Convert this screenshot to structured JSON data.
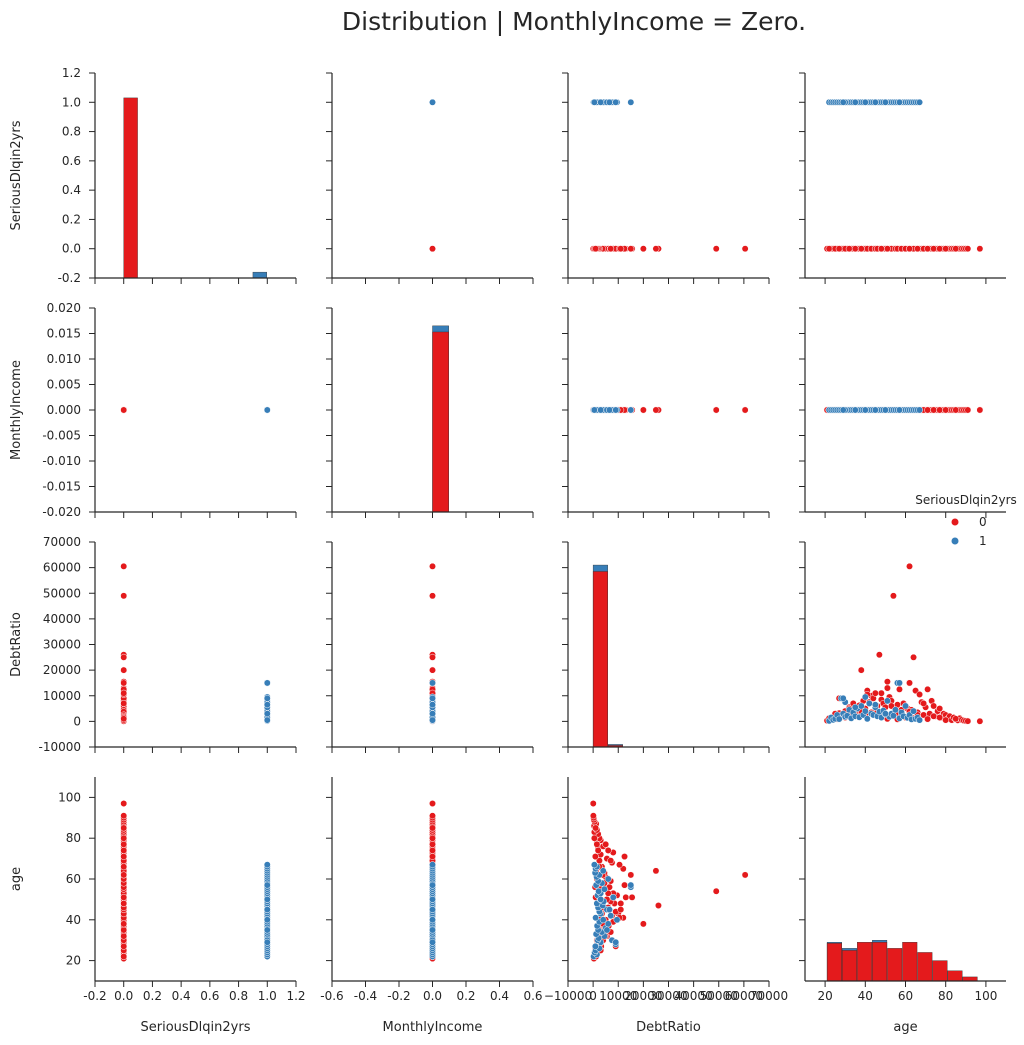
{
  "chart_data": {
    "type": "scatter",
    "title": "Distribution | MonthlyIncome = Zero.",
    "variables": [
      "SeriousDlqin2yrs",
      "MonthlyIncome",
      "DebtRatio",
      "age"
    ],
    "legend": {
      "title": "SeriousDlqin2yrs",
      "placement": "right, between row 2 and row 3",
      "entries": [
        {
          "label": "0",
          "color": "#e41a1c"
        },
        {
          "label": "1",
          "color": "#377eb8"
        }
      ]
    },
    "axes": {
      "SeriousDlqin2yrs": {
        "range": [
          -0.2,
          1.2
        ],
        "ticks": [
          "-0.2",
          "0.0",
          "0.2",
          "0.4",
          "0.6",
          "0.8",
          "1.0",
          "1.2"
        ],
        "tick_values": [
          -0.2,
          0,
          0.2,
          0.4,
          0.6,
          0.8,
          1.0,
          1.2
        ]
      },
      "MonthlyIncome_x": {
        "range": [
          -0.6,
          0.6
        ],
        "ticks": [
          "-0.6",
          "-0.4",
          "-0.2",
          "0.0",
          "0.2",
          "0.4",
          "0.6"
        ],
        "tick_values": [
          -0.6,
          -0.4,
          -0.2,
          0,
          0.2,
          0.4,
          0.6
        ]
      },
      "MonthlyIncome_y": {
        "range": [
          -0.02,
          0.02
        ],
        "ticks": [
          "-0.020",
          "-0.015",
          "-0.010",
          "-0.005",
          "0.000",
          "0.005",
          "0.010",
          "0.015",
          "0.020"
        ],
        "tick_values": [
          -0.02,
          -0.015,
          -0.01,
          -0.005,
          0,
          0.005,
          0.01,
          0.015,
          0.02
        ]
      },
      "DebtRatio_x": {
        "range": [
          -10000,
          70000
        ],
        "ticks": [
          "−10000",
          "0",
          "10000",
          "20000",
          "30000",
          "40000",
          "50000",
          "60000",
          "70000"
        ],
        "tick_values": [
          -10000,
          0,
          10000,
          20000,
          30000,
          40000,
          50000,
          60000,
          70000
        ]
      },
      "DebtRatio_y": {
        "range": [
          -10000,
          70000
        ],
        "ticks": [
          "-10000",
          "0",
          "10000",
          "20000",
          "30000",
          "40000",
          "50000",
          "60000",
          "70000"
        ],
        "tick_values": [
          -10000,
          0,
          10000,
          20000,
          30000,
          40000,
          50000,
          60000,
          70000
        ]
      },
      "age_x": {
        "range": [
          10,
          110
        ],
        "ticks": [
          "20",
          "40",
          "60",
          "80",
          "100"
        ],
        "tick_values": [
          20,
          40,
          60,
          80,
          100
        ]
      },
      "age_y": {
        "range": [
          10,
          110
        ],
        "ticks": [
          "20",
          "40",
          "60",
          "80",
          "100"
        ],
        "tick_values": [
          20,
          40,
          60,
          80,
          100
        ]
      }
    },
    "histograms": {
      "SeriousDlqin2yrs": {
        "range": [
          -0.2,
          1.2
        ],
        "ylim": [
          -0.2,
          1.2
        ],
        "bars": [
          {
            "x0": 0.0,
            "x1": 0.1,
            "series": 0,
            "top": 1.03
          },
          {
            "x0": 0.9,
            "x1": 1.0,
            "series": 1,
            "top": -0.16
          }
        ]
      },
      "MonthlyIncome": {
        "range": [
          -0.6,
          0.6
        ],
        "ylim": [
          -0.02,
          0.02
        ],
        "bars": [
          {
            "x0": 0.0,
            "x1": 0.1,
            "series": 1,
            "top": 0.0165
          },
          {
            "x0": 0.0,
            "x1": 0.1,
            "series": 0,
            "top": 0.0153
          }
        ]
      },
      "DebtRatio": {
        "range": [
          -10000,
          70000
        ],
        "ylim": [
          -10000,
          70000
        ],
        "bars": [
          {
            "x0": 0,
            "x1": 6000,
            "series": 1,
            "top": 61000
          },
          {
            "x0": 0,
            "x1": 6000,
            "series": 0,
            "top": 58500
          },
          {
            "x0": 6000,
            "x1": 12000,
            "series": 1,
            "top": -9000
          },
          {
            "x0": 6000,
            "x1": 12000,
            "series": 0,
            "top": -9400
          }
        ]
      },
      "age": {
        "range": [
          10,
          110
        ],
        "ylim": [
          0,
          200
        ],
        "bars": [
          {
            "x0": 21,
            "x1": 28.5,
            "series": 1,
            "top": 38
          },
          {
            "x0": 21,
            "x1": 28.5,
            "series": 0,
            "top": 37
          },
          {
            "x0": 28.5,
            "x1": 36,
            "series": 1,
            "top": 32
          },
          {
            "x0": 28.5,
            "x1": 36,
            "series": 0,
            "top": 30
          },
          {
            "x0": 36,
            "x1": 43.5,
            "series": 0,
            "top": 38
          },
          {
            "x0": 43.5,
            "x1": 51,
            "series": 1,
            "top": 40
          },
          {
            "x0": 43.5,
            "x1": 51,
            "series": 0,
            "top": 38
          },
          {
            "x0": 51,
            "x1": 58.5,
            "series": 0,
            "top": 32
          },
          {
            "x0": 58.5,
            "x1": 66,
            "series": 0,
            "top": 38
          },
          {
            "x0": 66,
            "x1": 73.5,
            "series": 0,
            "top": 28
          },
          {
            "x0": 73.5,
            "x1": 81,
            "series": 0,
            "top": 20
          },
          {
            "x0": 81,
            "x1": 88.5,
            "series": 0,
            "top": 10
          },
          {
            "x0": 88.5,
            "x1": 96,
            "series": 0,
            "top": 4
          }
        ]
      }
    },
    "series": [
      {
        "name": "0",
        "color": "#e41a1c",
        "age": [
          21,
          22,
          23,
          24,
          25,
          26,
          27,
          28,
          29,
          30,
          31,
          32,
          33,
          34,
          35,
          36,
          37,
          38,
          39,
          40,
          41,
          42,
          43,
          44,
          45,
          46,
          47,
          48,
          49,
          50,
          51,
          52,
          53,
          54,
          55,
          56,
          57,
          58,
          59,
          60,
          61,
          62,
          63,
          64,
          65,
          66,
          67,
          68,
          69,
          70,
          71,
          72,
          73,
          74,
          75,
          76,
          77,
          78,
          79,
          80,
          81,
          82,
          83,
          84,
          85,
          86,
          87,
          88,
          89,
          90,
          91,
          97,
          22,
          25,
          27,
          30,
          32,
          35,
          38,
          40,
          41,
          43,
          45,
          46,
          48,
          50,
          51,
          53,
          55,
          56,
          58,
          60,
          62,
          64,
          66,
          69,
          71,
          74,
          77,
          80,
          85,
          38,
          48,
          51,
          62
        ],
        "debt": [
          300,
          800,
          600,
          1500,
          2000,
          900,
          3200,
          2500,
          1800,
          4000,
          2200,
          5500,
          3000,
          7000,
          2800,
          4500,
          6200,
          3500,
          8000,
          5000,
          12000,
          7500,
          10000,
          9000,
          11000,
          6000,
          26000,
          8500,
          7000,
          5500,
          13000,
          9500,
          8000,
          49000,
          4000,
          6500,
          12500,
          3000,
          7000,
          6000,
          5000,
          60500,
          4500,
          25000,
          12000,
          3500,
          10500,
          7500,
          2500,
          5500,
          12500,
          3000,
          8000,
          6000,
          2000,
          4000,
          5000,
          1500,
          3000,
          2500,
          1000,
          2000,
          500,
          1500,
          800,
          400,
          1200,
          600,
          300,
          200,
          100,
          50,
          1200,
          3000,
          9000,
          1500,
          5000,
          2000,
          4000,
          2500,
          10500,
          3500,
          6500,
          4000,
          1800,
          2200,
          1000,
          6000,
          3000,
          800,
          4500,
          1500,
          3800,
          1200,
          2500,
          7000,
          900,
          2000,
          1500,
          500,
          1000,
          20000,
          11000,
          15500,
          15000
        ]
      },
      {
        "name": "1",
        "color": "#377eb8",
        "age": [
          22,
          23,
          24,
          25,
          26,
          27,
          28,
          29,
          30,
          31,
          32,
          33,
          34,
          35,
          36,
          37,
          38,
          39,
          40,
          41,
          42,
          43,
          44,
          45,
          46,
          47,
          48,
          49,
          50,
          51,
          52,
          53,
          54,
          55,
          56,
          57,
          58,
          59,
          60,
          61,
          62,
          63,
          64,
          65,
          66,
          67,
          30,
          35,
          40,
          45,
          50,
          57,
          29
        ],
        "debt": [
          200,
          1500,
          600,
          1000,
          2500,
          900,
          9000,
          3000,
          1800,
          2200,
          4500,
          1200,
          3500,
          2000,
          5000,
          1600,
          6000,
          2500,
          4000,
          1000,
          7000,
          3000,
          2500,
          5500,
          2000,
          3800,
          1500,
          4200,
          2800,
          8000,
          1800,
          3000,
          2200,
          4500,
          15000,
          1200,
          3500,
          2000,
          6000,
          1400,
          2500,
          800,
          4000,
          1000,
          1500,
          500,
          7500,
          5500,
          9500,
          6500,
          3000,
          15000,
          9000
        ]
      }
    ]
  }
}
